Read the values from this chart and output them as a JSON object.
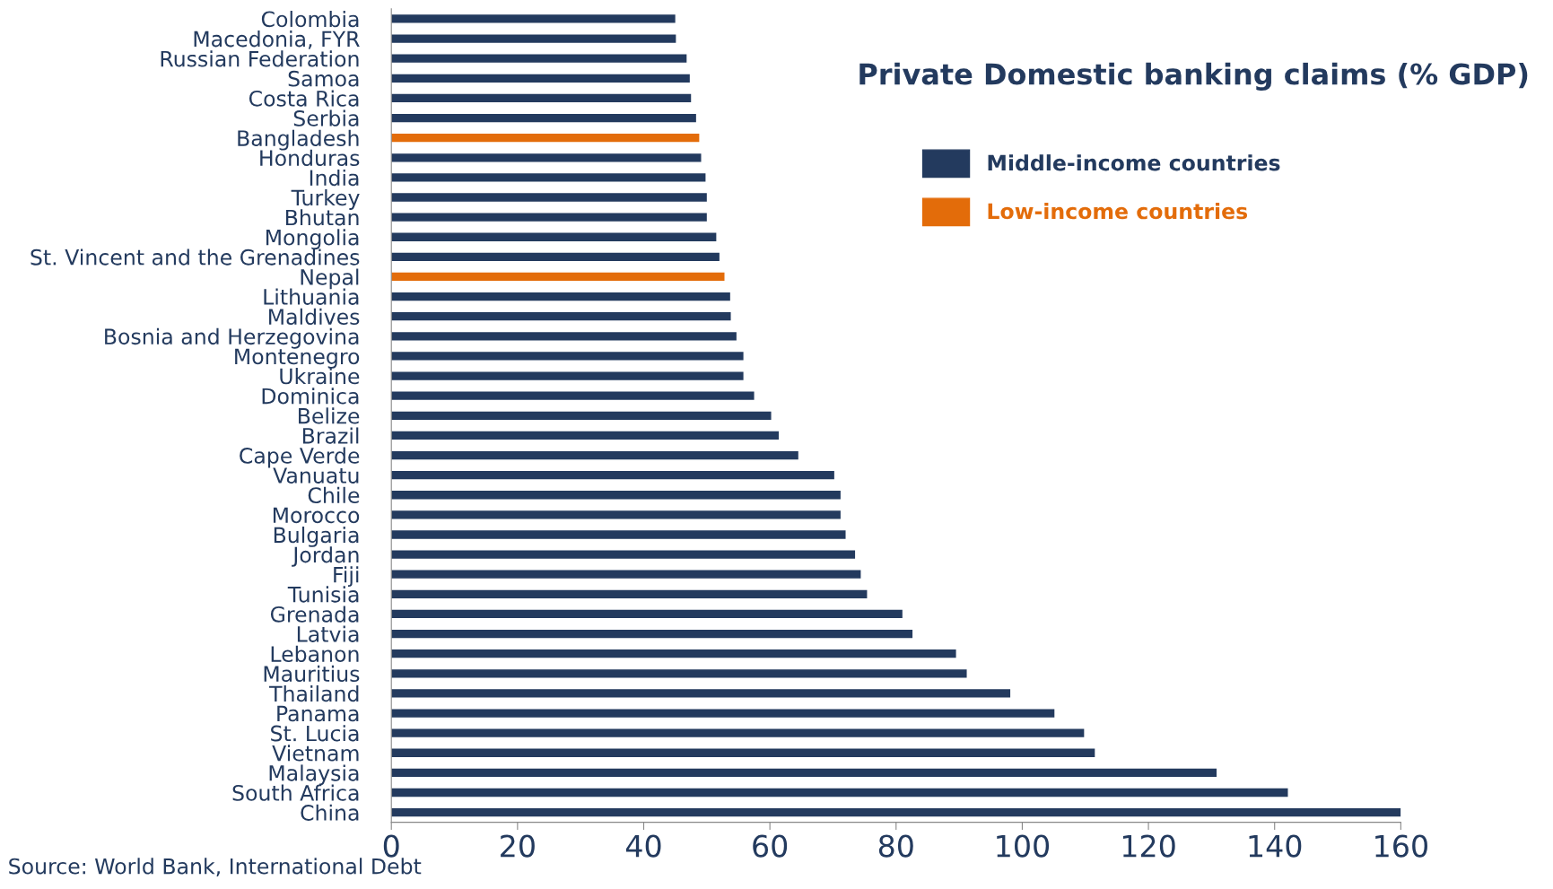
{
  "chart_data": {
    "type": "bar",
    "orientation": "horizontal",
    "title": "Private Domestic banking claims (% GDP)",
    "categories": [
      "Colombia",
      "Macedonia, FYR",
      "Russian Federation",
      "Samoa",
      "Costa Rica",
      "Serbia",
      "Bangladesh",
      "Honduras",
      "India",
      "Turkey",
      "Bhutan",
      "Mongolia",
      "St. Vincent and the Grenadines",
      "Nepal",
      "Lithuania",
      "Maldives",
      "Bosnia and Herzegovina",
      "Montenegro",
      "Ukraine",
      "Dominica",
      "Belize",
      "Brazil",
      "Cape Verde",
      "Vanuatu",
      "Chile",
      "Morocco",
      "Bulgaria",
      "Jordan",
      "Fiji",
      "Tunisia",
      "Grenada",
      "Latvia",
      "Lebanon",
      "Mauritius",
      "Thailand",
      "Panama",
      "St. Lucia",
      "Vietnam",
      "Malaysia",
      "South Africa",
      "China"
    ],
    "series": [
      {
        "name": "Middle-income countries",
        "color": "#233a5e",
        "values": [
          45.0,
          45.1,
          46.8,
          47.3,
          47.5,
          48.3,
          null,
          49.1,
          49.8,
          50.0,
          50.0,
          51.5,
          52.0,
          null,
          53.7,
          53.8,
          54.7,
          55.8,
          55.8,
          57.5,
          60.2,
          61.4,
          64.5,
          70.2,
          71.2,
          71.2,
          72.0,
          73.5,
          74.4,
          75.4,
          81.0,
          82.6,
          89.5,
          91.2,
          98.1,
          105.1,
          109.8,
          111.5,
          130.8,
          142.1,
          160
        ]
      },
      {
        "name": "Low-income countries",
        "color": "#e36c0a",
        "values": [
          null,
          null,
          null,
          null,
          null,
          null,
          48.8,
          null,
          null,
          null,
          null,
          null,
          null,
          52.8,
          null,
          null,
          null,
          null,
          null,
          null,
          null,
          null,
          null,
          null,
          null,
          null,
          null,
          null,
          null,
          null,
          null,
          null,
          null,
          null,
          null,
          null,
          null,
          null,
          null,
          null,
          null
        ]
      }
    ],
    "xlim": [
      0,
      160
    ],
    "xticks": [
      0,
      20,
      40,
      60,
      80,
      100,
      120,
      140,
      160
    ],
    "legend": "top right",
    "grid": false,
    "annotations": [
      "Source: World Bank, International Debt"
    ]
  }
}
